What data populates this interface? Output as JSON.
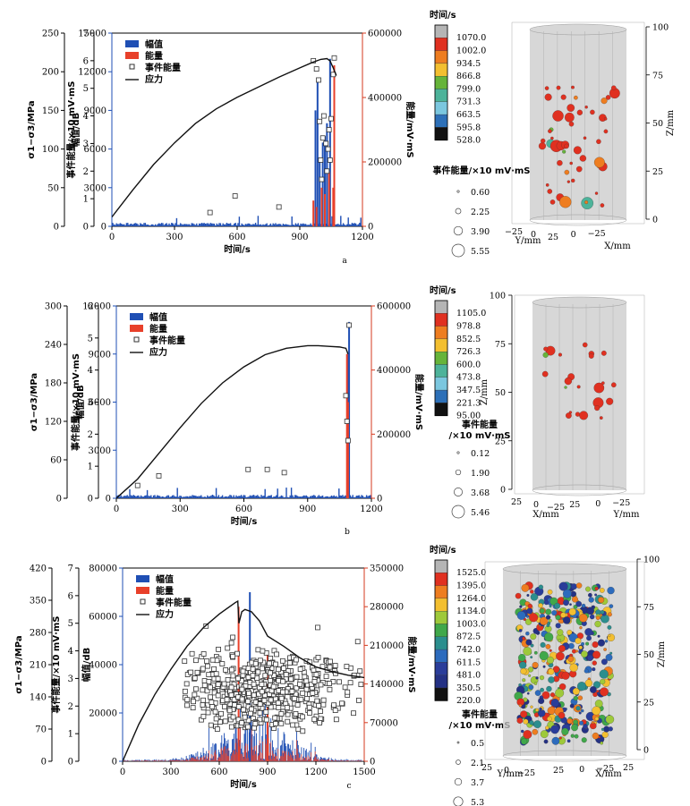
{
  "chart_data": [
    {
      "type": "bar",
      "panel_label": "a",
      "xlabel": "时间/s",
      "xlim": [
        0,
        1200
      ],
      "xticks": [
        0,
        300,
        600,
        900,
        1200
      ],
      "stress_axis": {
        "label": "σ1−σ3/MPa",
        "lim": [
          0,
          250
        ],
        "ticks": [
          0,
          50,
          100,
          150,
          200,
          250
        ]
      },
      "event_energy_axis": {
        "label": "事件能量/×10 mV·mS",
        "lim": [
          0,
          7
        ],
        "ticks": [
          0,
          1,
          2,
          3,
          4,
          5,
          6,
          7
        ]
      },
      "amplitude_axis": {
        "label": "幅值/dB",
        "lim": [
          0,
          15000
        ],
        "ticks": [
          0,
          3000,
          6000,
          9000,
          12000,
          15000
        ]
      },
      "energy_axis": {
        "label": "能量/mV·mS",
        "lim": [
          0,
          600000
        ],
        "ticks": [
          0,
          200000,
          400000,
          600000
        ]
      },
      "legend": [
        "幅值",
        "能量",
        "事件能量",
        "应力"
      ],
      "stress": [
        [
          0,
          12
        ],
        [
          100,
          47
        ],
        [
          200,
          80
        ],
        [
          300,
          108
        ],
        [
          400,
          133
        ],
        [
          500,
          152
        ],
        [
          600,
          167
        ],
        [
          700,
          180
        ],
        [
          800,
          193
        ],
        [
          900,
          205
        ],
        [
          960,
          212
        ],
        [
          1000,
          216
        ],
        [
          1030,
          217
        ],
        [
          1045,
          214
        ],
        [
          1060,
          205
        ],
        [
          1075,
          195
        ]
      ],
      "event_energy": [
        [
          470,
          0.5
        ],
        [
          590,
          1.1
        ],
        [
          800,
          0.7
        ],
        [
          965,
          6.0
        ],
        [
          980,
          5.7
        ],
        [
          990,
          5.3
        ],
        [
          995,
          3.8
        ],
        [
          1000,
          2.4
        ],
        [
          1005,
          1.7
        ],
        [
          1010,
          3.2
        ],
        [
          1015,
          4.0
        ],
        [
          1025,
          3.0
        ],
        [
          1030,
          2.0
        ],
        [
          1035,
          2.8
        ],
        [
          1040,
          3.5
        ],
        [
          1045,
          2.4
        ],
        [
          1050,
          3.9
        ],
        [
          1060,
          5.5
        ],
        [
          1065,
          6.1
        ]
      ],
      "amplitude_spikes": [
        [
          975,
          9000
        ],
        [
          985,
          11500
        ],
        [
          995,
          5000
        ],
        [
          1010,
          6500
        ],
        [
          1020,
          7000
        ],
        [
          1030,
          8000
        ],
        [
          1045,
          13000
        ]
      ],
      "energy_spikes": [
        [
          965,
          80000
        ],
        [
          980,
          60000
        ],
        [
          1005,
          120000
        ],
        [
          1020,
          100000
        ],
        [
          1040,
          170000
        ],
        [
          1060,
          120000
        ],
        [
          1065,
          500000
        ]
      ]
    },
    {
      "type": "bar",
      "panel_label": "b",
      "xlabel": "时间/s",
      "xlim": [
        0,
        1200
      ],
      "xticks": [
        0,
        300,
        600,
        900,
        1200
      ],
      "stress_axis": {
        "label": "σ1−σ3/MPa",
        "lim": [
          0,
          300
        ],
        "ticks": [
          0,
          60,
          120,
          180,
          240,
          300
        ]
      },
      "event_energy_axis": {
        "label": "事件能量/×10 mV·mS",
        "lim": [
          0,
          6
        ],
        "ticks": [
          0,
          1,
          2,
          3,
          4,
          5,
          6
        ]
      },
      "amplitude_axis": {
        "label": "幅值/dB",
        "lim": [
          0,
          12000
        ],
        "ticks": [
          0,
          3000,
          6000,
          9000,
          12000
        ]
      },
      "energy_axis": {
        "label": "能量/mV·mS",
        "lim": [
          0,
          600000
        ],
        "ticks": [
          0,
          200000,
          400000,
          600000
        ]
      },
      "legend": [
        "幅值",
        "能量",
        "事件能量",
        "应力"
      ],
      "stress": [
        [
          0,
          0
        ],
        [
          100,
          30
        ],
        [
          200,
          70
        ],
        [
          300,
          110
        ],
        [
          400,
          148
        ],
        [
          500,
          180
        ],
        [
          600,
          205
        ],
        [
          700,
          224
        ],
        [
          800,
          234
        ],
        [
          900,
          238
        ],
        [
          950,
          238
        ],
        [
          1000,
          237
        ],
        [
          1050,
          236
        ],
        [
          1080,
          234
        ],
        [
          1090,
          225
        ]
      ],
      "event_energy": [
        [
          100,
          0.4
        ],
        [
          200,
          0.7
        ],
        [
          620,
          0.9
        ],
        [
          710,
          0.9
        ],
        [
          790,
          0.8
        ],
        [
          1080,
          3.2
        ],
        [
          1085,
          2.4
        ],
        [
          1090,
          1.8
        ],
        [
          1095,
          5.4
        ]
      ],
      "amplitude_spikes": [
        [
          1090,
          9000
        ],
        [
          1095,
          11000
        ]
      ],
      "energy_spikes": [
        [
          1085,
          450000
        ],
        [
          1090,
          300000
        ]
      ]
    },
    {
      "type": "bar",
      "panel_label": "c",
      "xlabel": "时间/s",
      "xlim": [
        0,
        1500
      ],
      "xticks": [
        0,
        300,
        600,
        900,
        1200,
        1500
      ],
      "stress_axis": {
        "label": "σ1−σ3/MPa",
        "lim": [
          0,
          420
        ],
        "ticks": [
          0,
          70,
          140,
          210,
          280,
          350,
          420
        ]
      },
      "event_energy_axis": {
        "label": "事件能量/×10 mV·mS",
        "lim": [
          0,
          7
        ],
        "ticks": [
          0,
          1,
          2,
          3,
          4,
          5,
          6,
          7
        ]
      },
      "amplitude_axis": {
        "label": "幅值/dB",
        "lim": [
          0,
          80000
        ],
        "ticks": [
          0,
          20000,
          40000,
          60000,
          80000
        ]
      },
      "energy_axis": {
        "label": "能量/mV·mS",
        "lim": [
          0,
          350000
        ],
        "ticks": [
          0,
          70000,
          140000,
          210000,
          280000,
          350000
        ]
      },
      "legend": [
        "幅值",
        "能量",
        "事件能量",
        "应力"
      ],
      "stress": [
        [
          0,
          0
        ],
        [
          100,
          80
        ],
        [
          200,
          145
        ],
        [
          300,
          200
        ],
        [
          400,
          250
        ],
        [
          500,
          290
        ],
        [
          600,
          320
        ],
        [
          700,
          345
        ],
        [
          715,
          348
        ],
        [
          722,
          300
        ],
        [
          740,
          325
        ],
        [
          760,
          330
        ],
        [
          800,
          325
        ],
        [
          850,
          305
        ],
        [
          900,
          272
        ],
        [
          1000,
          250
        ],
        [
          1100,
          225
        ],
        [
          1200,
          205
        ],
        [
          1300,
          195
        ],
        [
          1400,
          187
        ],
        [
          1500,
          182
        ]
      ],
      "event_energy_y_range": [
        0.5,
        5.0
      ],
      "amplitude_peak": [
        790,
        70000
      ],
      "energy_peaks": [
        [
          720,
          280000
        ],
        [
          900,
          200000
        ]
      ]
    },
    {
      "type": "scatter",
      "panel_label": "a-3d",
      "legend_title": "时间/s",
      "colorbar": [
        "1070.0",
        "1002.0",
        "934.5",
        "866.8",
        "799.0",
        "731.3",
        "663.5",
        "595.8",
        "528.0"
      ],
      "size_title": "事件能量/×10 mV·mS",
      "size_values": [
        "0.60",
        "2.25",
        "3.90",
        "5.55"
      ],
      "z_axis": {
        "label": "Z/mm",
        "ticks": [
          "0",
          "25",
          "50",
          "75",
          "100"
        ]
      },
      "x_axis": {
        "label": "X/mm",
        "ticks": [
          "0",
          "−25"
        ]
      },
      "y_axis": {
        "label": "Y/mm",
        "ticks": [
          "−25",
          "0",
          "25"
        ]
      }
    },
    {
      "type": "scatter",
      "panel_label": "b-3d",
      "legend_title": "时间/s",
      "colorbar": [
        "1105.0",
        "978.8",
        "852.5",
        "726.3",
        "600.0",
        "473.8",
        "347.5",
        "221.3",
        "95.00"
      ],
      "size_title": "事件能量 /×10 mV·mS",
      "size_values": [
        "0.12",
        "1.90",
        "3.68",
        "5.46"
      ],
      "z_axis": {
        "label": "Z/mm",
        "ticks": [
          "0",
          "25",
          "50",
          "75",
          "100"
        ]
      },
      "x_axis": {
        "label": "X/mm",
        "ticks": [
          "25",
          "0",
          "−25"
        ]
      },
      "y_axis": {
        "label": "Y/mm",
        "ticks": [
          "25",
          "0",
          "−25"
        ]
      }
    },
    {
      "type": "scatter",
      "panel_label": "c-3d",
      "legend_title": "时间/s",
      "colorbar": [
        "1525.0",
        "1395.0",
        "1264.0",
        "1134.0",
        "1003.0",
        "872.5",
        "742.0",
        "611.5",
        "481.0",
        "350.5",
        "220.0"
      ],
      "size_title": "事件能量 /×10 mV·mS",
      "size_values": [
        "0.5",
        "2.1",
        "3.7",
        "5.3"
      ],
      "z_axis": {
        "label": "Z/mm",
        "ticks": [
          "0",
          "25",
          "50",
          "75",
          "100"
        ]
      },
      "x_axis": {
        "label": "X/mm",
        "ticks": [
          "25",
          "0",
          "−25",
          "25"
        ]
      },
      "y_axis": {
        "label": "Y/mm",
        "ticks": [
          "25",
          "0",
          "−25"
        ]
      }
    }
  ],
  "colors": {
    "amplitude": "#1f4fb4",
    "energy": "#e8402a",
    "stress": "#111111",
    "event": "#333333",
    "energy_axis": "#d63a1f",
    "amplitude_axis": "#1f4fb4"
  },
  "colorbar_palettes": {
    "nine": [
      "#b5b5b5",
      "#e03020",
      "#ee7d20",
      "#f3bf30",
      "#66b43a",
      "#4db39a",
      "#7bc7df",
      "#2d70b8",
      "#111111"
    ],
    "eleven": [
      "#b5b5b5",
      "#e03020",
      "#ee7d20",
      "#f3bf30",
      "#9ec93a",
      "#40a84a",
      "#2b8e8e",
      "#2c6bbd",
      "#2a3d9a",
      "#243184",
      "#111111"
    ]
  }
}
